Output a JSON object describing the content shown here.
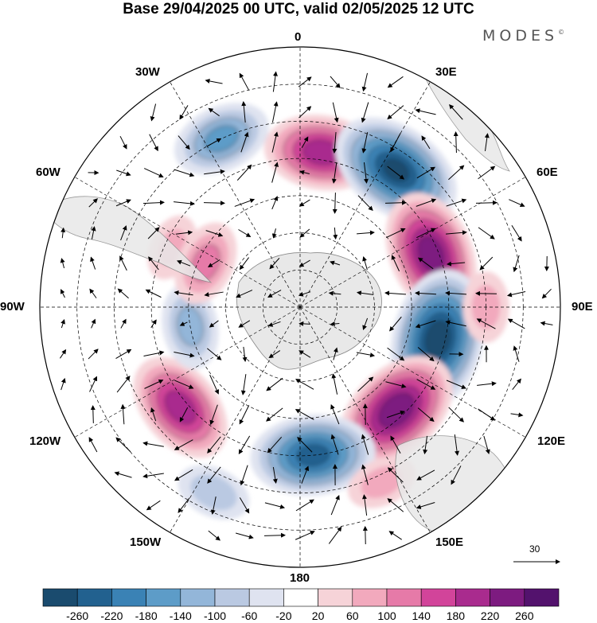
{
  "title": "Base 29/04/2025 00 UTC, valid 02/05/2025 12 UTC",
  "brand": "MODES",
  "brand_mark": "©",
  "longitude_labels": [
    "0",
    "30E",
    "60E",
    "90E",
    "120E",
    "150E",
    "180",
    "150W",
    "120W",
    "90W",
    "60W",
    "30W"
  ],
  "reference_vector": "30",
  "colorbar": {
    "ticks": [
      "-260",
      "-220",
      "-180",
      "-140",
      "-100",
      "-60",
      "-20",
      "20",
      "60",
      "100",
      "140",
      "180",
      "220",
      "260"
    ],
    "colors": [
      "#1a4b6e",
      "#22618f",
      "#3a82b5",
      "#5d9cc8",
      "#93b6d9",
      "#bac9e2",
      "#dfe3f0",
      "#ffffff",
      "#f6d3d8",
      "#f2a9bd",
      "#e67aa8",
      "#d2449a",
      "#a92b8e",
      "#7d1b80",
      "#53126d"
    ]
  },
  "anomalies": [
    {
      "lat": -48,
      "lon": 8,
      "value": 200
    },
    {
      "lat": -45,
      "lon": 35,
      "value": -260
    },
    {
      "lat": -52,
      "lon": 68,
      "value": 240
    },
    {
      "lat": -52,
      "lon": 103,
      "value": -280
    },
    {
      "lat": -52,
      "lon": 137,
      "value": 250
    },
    {
      "lat": -50,
      "lon": 175,
      "value": -230
    },
    {
      "lat": -48,
      "lon": -130,
      "value": 200
    },
    {
      "lat": -40,
      "lon": -25,
      "value": -150
    },
    {
      "lat": -60,
      "lon": -100,
      "value": -110
    },
    {
      "lat": -52,
      "lon": -65,
      "value": 60
    },
    {
      "lat": -35,
      "lon": -155,
      "value": -80
    },
    {
      "lat": -62,
      "lon": -65,
      "value": 110
    },
    {
      "lat": -40,
      "lon": 90,
      "value": 70
    },
    {
      "lat": -38,
      "lon": 155,
      "value": 70
    }
  ]
}
